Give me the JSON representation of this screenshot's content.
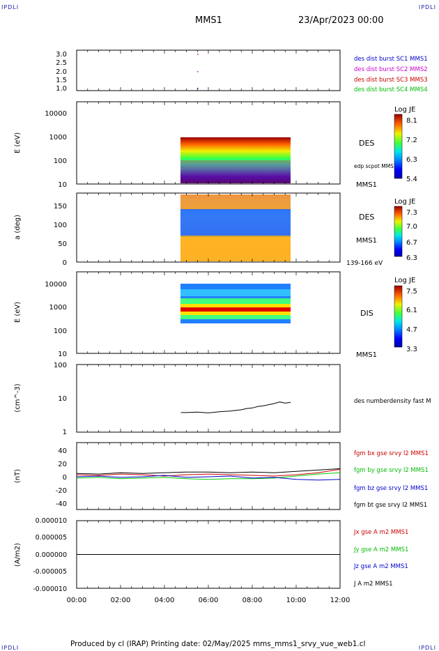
{
  "corners": {
    "tl": "IPDLI",
    "tr": "IPDLI",
    "bl": "IPDLI",
    "br": "IPDLI"
  },
  "header": {
    "spacecraft": "MMS1",
    "date": "23/Apr/2023 00:00"
  },
  "footer": {
    "text": "Produced by cl (IRAP)   Printing date: 02/May/2025   mms_mms1_srvy_vue_web1.cl"
  },
  "x_axis": {
    "range_hours": [
      0,
      12
    ],
    "ticks": [
      "00:00",
      "02:00",
      "04:00",
      "06:00",
      "08:00",
      "10:00",
      "12:00"
    ]
  },
  "colors": {
    "blue": "#0000cc",
    "magenta": "#cc00cc",
    "red": "#cc0000",
    "green": "#00cc00",
    "black": "#000000"
  },
  "panels": {
    "p1": {
      "yticks": [
        "3.0",
        "2.5",
        "2.0",
        "1.5",
        "1.0"
      ],
      "legend": [
        "des dist burst SC1 MMS1",
        "des dist burst SC2 MMS2",
        "des dist burst SC3 MMS3",
        "des dist burst SC4 MMS4"
      ]
    },
    "p2": {
      "ylabel": "E (eV)",
      "yticks": [
        "10000",
        "1000",
        "100",
        "10"
      ],
      "label": "DES",
      "sub": "edp scpot MMS1",
      "tag": "MMS1",
      "cbar_title": "Log JE",
      "cbar_ticks": [
        "8.1",
        "7.2",
        "6.3",
        "5.4"
      ]
    },
    "p3": {
      "ylabel": "a (deg)",
      "yticks": [
        "150",
        "100",
        "50",
        "0"
      ],
      "label": "DES",
      "tag": "MMS1",
      "sub": "139-166 eV",
      "cbar_title": "Log JE",
      "cbar_ticks": [
        "7.3",
        "7.0",
        "6.7",
        "6.3"
      ]
    },
    "p4": {
      "ylabel": "E (eV)",
      "yticks": [
        "10000",
        "1000",
        "100",
        "10"
      ],
      "label": "DIS",
      "tag": "MMS1",
      "cbar_title": "Log JE",
      "cbar_ticks": [
        "7.5",
        "6.1",
        "4.7",
        "3.3"
      ]
    },
    "p5": {
      "ylabel": "(cm^-3)",
      "yticks": [
        "100",
        "10",
        "1"
      ],
      "legend": "des numberdensity fast M"
    },
    "p6": {
      "ylabel": "(nT)",
      "yticks": [
        "40",
        "20",
        "0",
        "-20",
        "-40"
      ],
      "legend": [
        "fgm bx gse srvy l2 MMS1",
        "fgm by gse srvy l2 MMS1",
        "fgm bz gse srvy l2 MMS1",
        "fgm bt gse srvy l2 MMS1"
      ]
    },
    "p7": {
      "ylabel": "(A/m2)",
      "yticks": [
        "0.000010",
        "0.000005",
        "0.000000",
        "-0.000005",
        "-0.000010"
      ],
      "legend": [
        "Jx gse A m2 MMS1",
        "Jy gse A m2 MMS1",
        "Jz gse A m2 MMS1",
        "J A m2 MMS1"
      ]
    }
  },
  "chart_data": [
    {
      "type": "scatter",
      "title": "",
      "x_range_hours": [
        0,
        12
      ],
      "ylim": [
        0.8,
        3.2
      ],
      "series": [
        {
          "name": "des dist burst SC1 MMS1",
          "x_hours": [
            5.45
          ],
          "y": [
            1.0
          ]
        },
        {
          "name": "des dist burst SC2 MMS2",
          "x_hours": [
            5.45
          ],
          "y": [
            2.0
          ]
        },
        {
          "name": "des dist burst SC3 MMS3",
          "x_hours": [
            5.45
          ],
          "y": [
            3.0
          ]
        },
        {
          "name": "des dist burst SC4 MMS4",
          "x_hours": [],
          "y": []
        }
      ]
    },
    {
      "type": "heatmap",
      "label": "DES",
      "ylabel": "E (eV)",
      "y_scale": "log",
      "ylim": [
        10,
        20000
      ],
      "x_range_hours": [
        4.75,
        9.75
      ],
      "y_range_eV": [
        10,
        1000
      ],
      "colorbar": "Log JE",
      "clim": [
        5.4,
        8.1
      ]
    },
    {
      "type": "heatmap",
      "label": "DES",
      "ylabel": "a (deg)",
      "ylim": [
        0,
        180
      ],
      "x_range_hours": [
        4.75,
        9.75
      ],
      "y_range_deg": [
        0,
        180
      ],
      "energy_band": "139-166 eV",
      "colorbar": "Log JE",
      "clim": [
        6.3,
        7.3
      ]
    },
    {
      "type": "heatmap",
      "label": "DIS",
      "ylabel": "E (eV)",
      "y_scale": "log",
      "ylim": [
        10,
        20000
      ],
      "x_range_hours": [
        4.75,
        9.75
      ],
      "y_range_eV": [
        200,
        10000
      ],
      "colorbar": "Log JE",
      "clim": [
        3.3,
        7.5
      ]
    },
    {
      "type": "line",
      "ylabel": "(cm^-3)",
      "y_scale": "log",
      "ylim": [
        1,
        100
      ],
      "series": [
        {
          "name": "des numberdensity fast M",
          "x_hours": [
            4.75,
            5.0,
            5.5,
            6.0,
            6.5,
            7.0,
            7.25,
            7.5,
            7.75,
            8.0,
            8.25,
            8.5,
            8.75,
            9.0,
            9.25,
            9.5,
            9.75
          ],
          "y": [
            3.8,
            3.8,
            3.9,
            3.7,
            4.0,
            4.2,
            4.4,
            4.6,
            5.0,
            5.2,
            5.7,
            6.0,
            6.5,
            7.0,
            7.8,
            7.2,
            7.6
          ]
        }
      ]
    },
    {
      "type": "line",
      "ylabel": "(nT)",
      "ylim": [
        -50,
        50
      ],
      "series": [
        {
          "name": "fgm bx gse srvy l2 MMS1",
          "x_hours": [
            0,
            1,
            2,
            3,
            4,
            5,
            6,
            7,
            8,
            9,
            10,
            11,
            12
          ],
          "y": [
            2,
            1,
            3,
            2,
            0,
            2,
            3,
            2,
            1,
            0,
            2,
            5,
            10
          ]
        },
        {
          "name": "fgm by gse srvy l2 MMS1",
          "x_hours": [
            0,
            1,
            2,
            3,
            4,
            5,
            6,
            7,
            8,
            9,
            10,
            11,
            12
          ],
          "y": [
            -3,
            -2,
            -4,
            -3,
            -2,
            -4,
            -5,
            -4,
            -4,
            -3,
            0,
            3,
            5
          ]
        },
        {
          "name": "fgm bz gse srvy l2 MMS1",
          "x_hours": [
            0,
            1,
            2,
            3,
            4,
            5,
            6,
            7,
            8,
            9,
            10,
            11,
            12
          ],
          "y": [
            -1,
            0,
            -2,
            -1,
            1,
            -2,
            -1,
            0,
            -3,
            -2,
            -5,
            -6,
            -5
          ]
        },
        {
          "name": "fgm bt gse srvy l2 MMS1",
          "x_hours": [
            0,
            1,
            2,
            3,
            4,
            5,
            6,
            7,
            8,
            9,
            10,
            11,
            12
          ],
          "y": [
            4,
            3,
            5,
            4,
            5,
            6,
            6,
            5,
            6,
            5,
            7,
            9,
            11
          ]
        }
      ]
    },
    {
      "type": "line",
      "ylabel": "(A/m2)",
      "ylim": [
        -1e-05,
        1e-05
      ],
      "series": [
        {
          "name": "Jx gse A m2 MMS1",
          "x_hours": [
            0,
            12
          ],
          "y": [
            0,
            0
          ]
        },
        {
          "name": "Jy gse A m2 MMS1",
          "x_hours": [
            0,
            12
          ],
          "y": [
            0,
            0
          ]
        },
        {
          "name": "Jz gse A m2 MMS1",
          "x_hours": [
            0,
            12
          ],
          "y": [
            0,
            0
          ]
        },
        {
          "name": "J A m2 MMS1",
          "x_hours": [
            0,
            12
          ],
          "y": [
            0,
            0
          ]
        }
      ]
    }
  ]
}
